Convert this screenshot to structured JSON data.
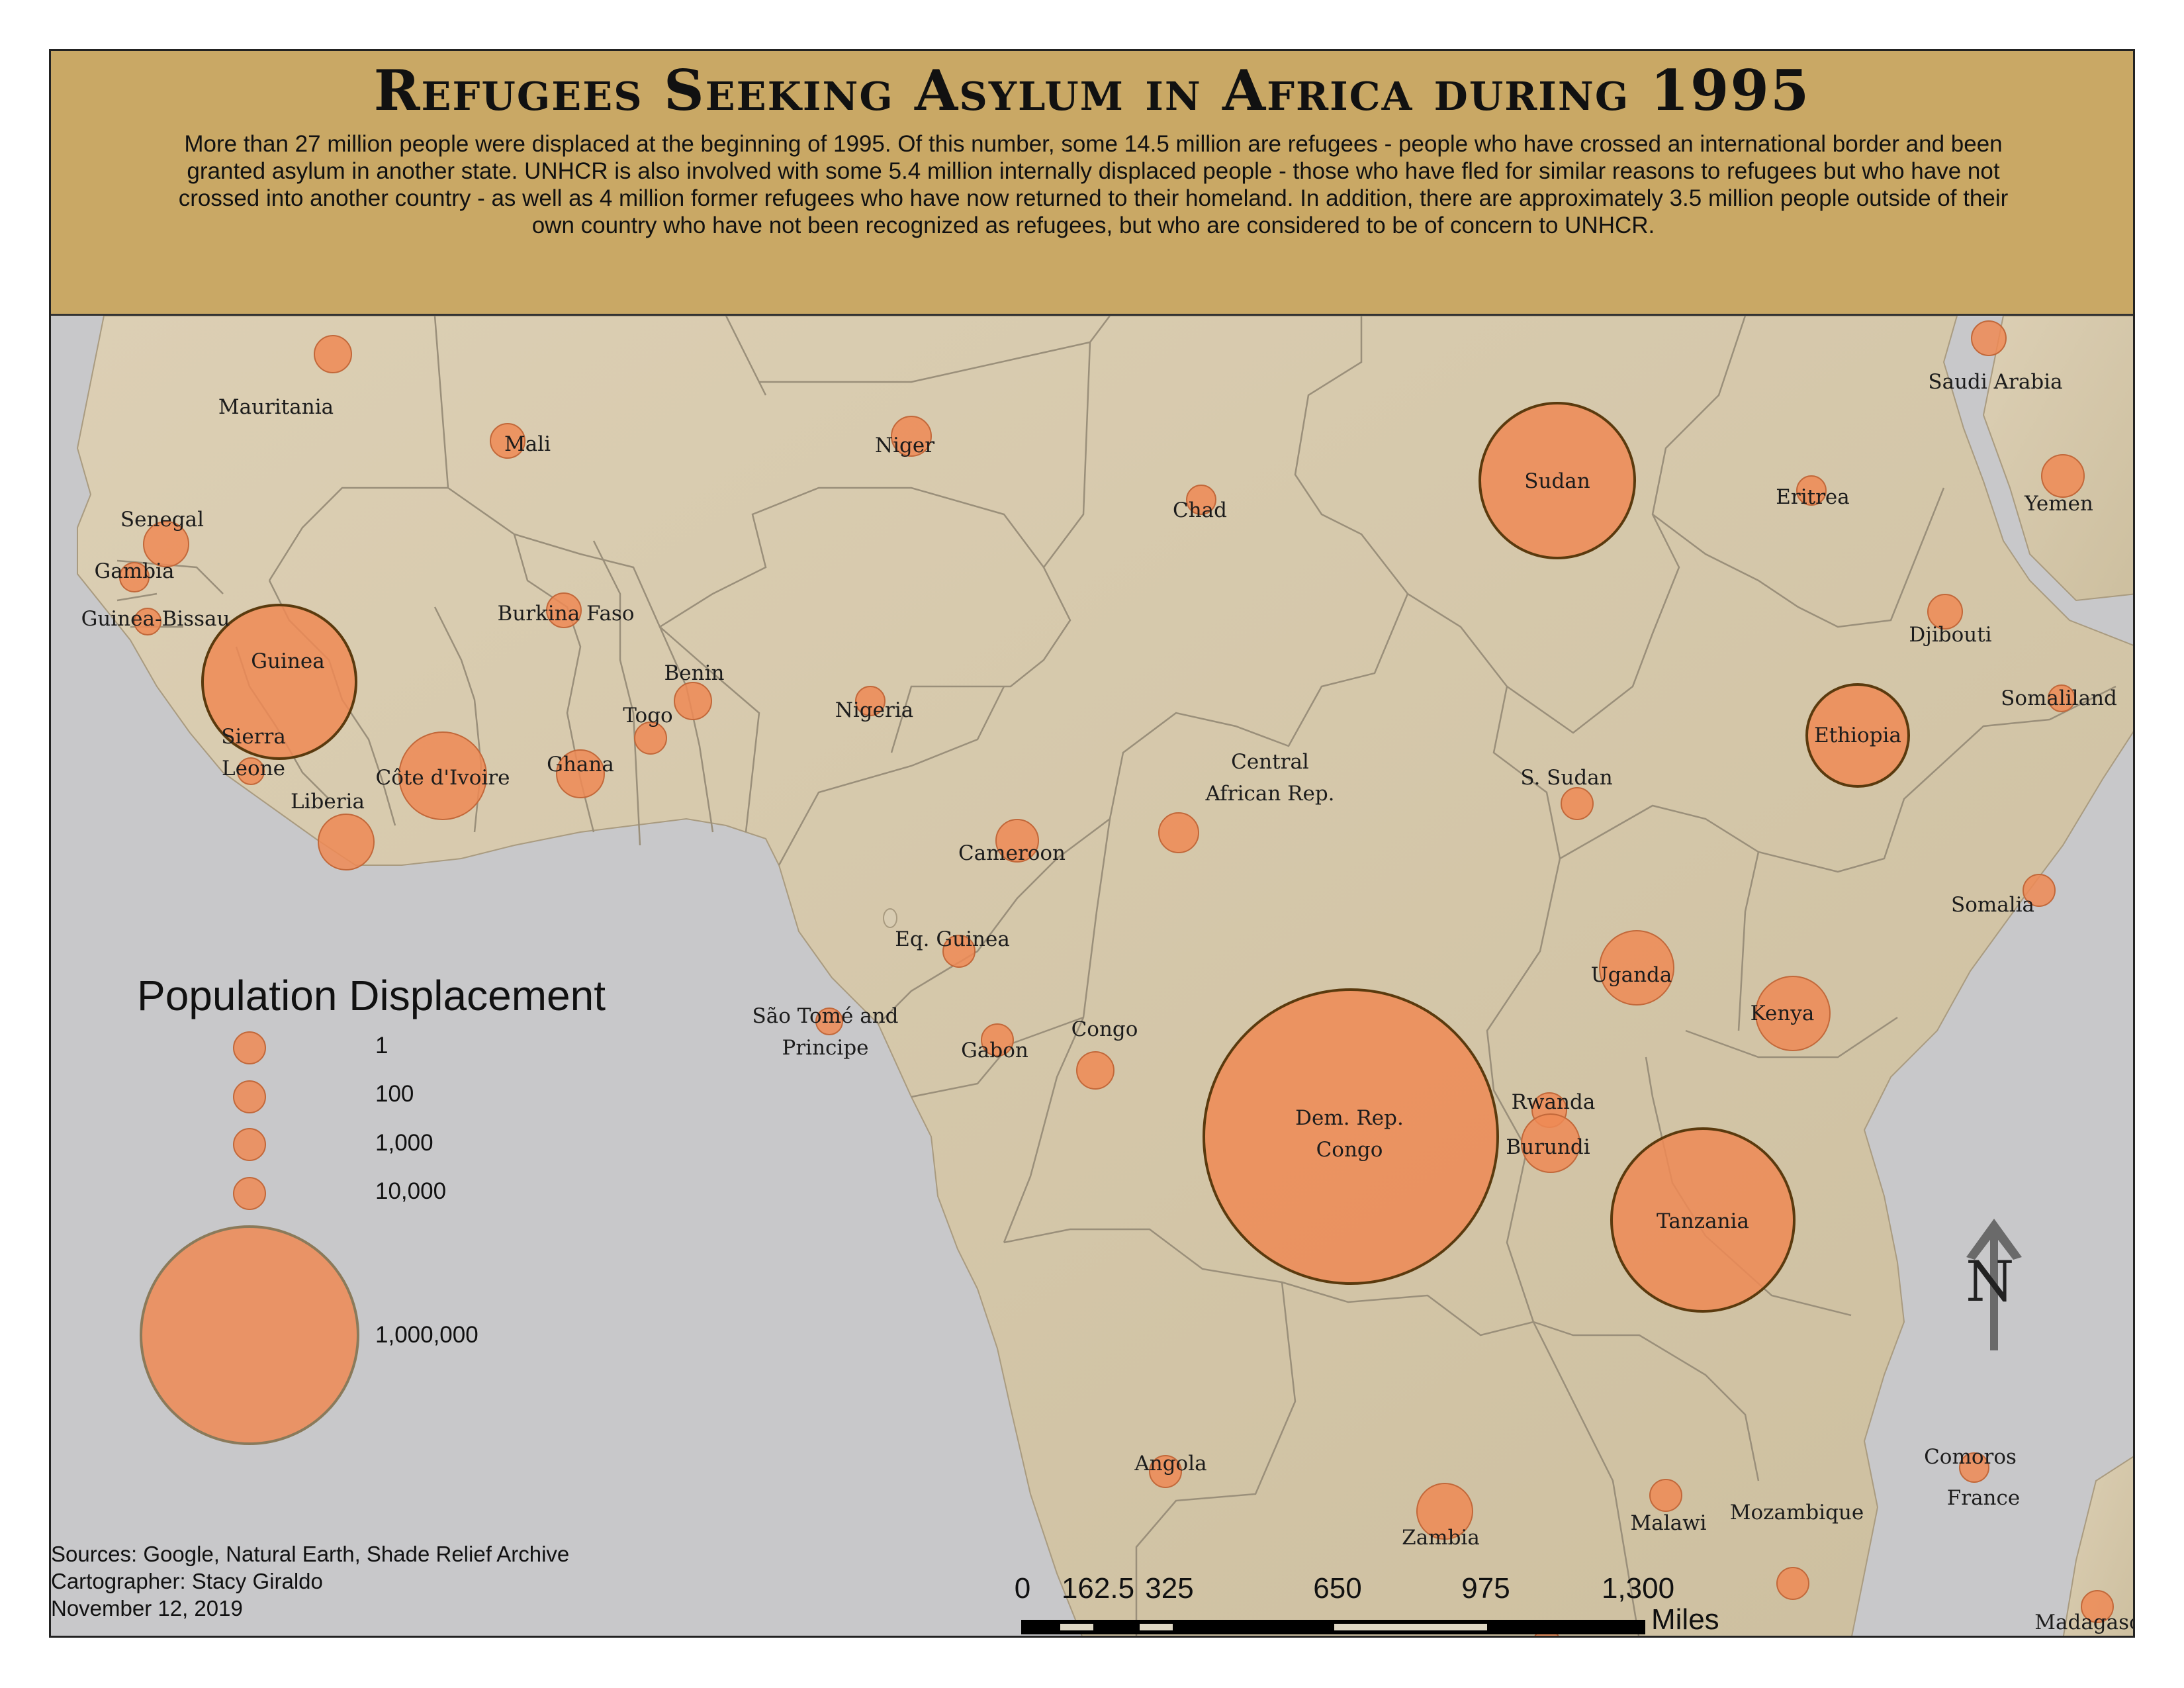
{
  "title": "Refugees Seeking Asylum in Africa during 1995",
  "description": "More than 27 million people were displaced at the beginning of 1995. Of this number, some 14.5 million are refugees - people who have crossed an international border and been granted asylum in another state. UNHCR is also involved with some 5.4 million internally displaced people - those who have fled for similar reasons to refugees but who have not crossed into another country - as well as 4 million former refugees who have now returned to their homeland. In addition, there are approximately 3.5 million people outside of their own country who have not been recognized as refugees, but who are considered to be of concern to UNHCR.",
  "countries": [
    {
      "name": "Mauritania",
      "line1": "Mauritania",
      "line2": ""
    },
    {
      "name": "Mali",
      "line1": "Mali",
      "line2": ""
    },
    {
      "name": "Niger",
      "line1": "Niger",
      "line2": ""
    },
    {
      "name": "Chad",
      "line1": "Chad",
      "line2": ""
    },
    {
      "name": "Sudan",
      "line1": "Sudan",
      "line2": ""
    },
    {
      "name": "Eritrea",
      "line1": "Eritrea",
      "line2": ""
    },
    {
      "name": "Saudi Arabia",
      "line1": "Saudi Arabia",
      "line2": ""
    },
    {
      "name": "Yemen",
      "line1": "Yemen",
      "line2": ""
    },
    {
      "name": "Senegal",
      "line1": "Senegal",
      "line2": ""
    },
    {
      "name": "Gambia",
      "line1": "Gambia",
      "line2": ""
    },
    {
      "name": "Guinea-Bissau",
      "line1": "Guinea-Bissau",
      "line2": ""
    },
    {
      "name": "Guinea",
      "line1": "Guinea",
      "line2": ""
    },
    {
      "name": "Burkina Faso",
      "line1": "Burkina Faso",
      "line2": ""
    },
    {
      "name": "Benin",
      "line1": "Benin",
      "line2": ""
    },
    {
      "name": "Togo",
      "line1": "Togo",
      "line2": ""
    },
    {
      "name": "Nigeria",
      "line1": "Nigeria",
      "line2": ""
    },
    {
      "name": "Djibouti",
      "line1": "Djibouti",
      "line2": ""
    },
    {
      "name": "Somaliland",
      "line1": "Somaliland",
      "line2": ""
    },
    {
      "name": "Ethiopia",
      "line1": "Ethiopia",
      "line2": ""
    },
    {
      "name": "Sierra Leone",
      "line1": "Sierra",
      "line2": "Leone"
    },
    {
      "name": "Côte d'Ivoire",
      "line1": "Côte d'Ivoire",
      "line2": ""
    },
    {
      "name": "Ghana",
      "line1": "Ghana",
      "line2": ""
    },
    {
      "name": "Liberia",
      "line1": "Liberia",
      "line2": ""
    },
    {
      "name": "Central African Rep.",
      "line1": "Central",
      "line2": "African Rep."
    },
    {
      "name": "S. Sudan",
      "line1": "S. Sudan",
      "line2": ""
    },
    {
      "name": "Cameroon",
      "line1": "Cameroon",
      "line2": ""
    },
    {
      "name": "Somalia",
      "line1": "Somalia",
      "line2": ""
    },
    {
      "name": "Eq. Guinea",
      "line1": "Eq. Guinea",
      "line2": ""
    },
    {
      "name": "Uganda",
      "line1": "Uganda",
      "line2": ""
    },
    {
      "name": "Kenya",
      "line1": "Kenya",
      "line2": ""
    },
    {
      "name": "São Tomé and Principe",
      "line1": "São Tomé and",
      "line2": "Principe"
    },
    {
      "name": "Gabon",
      "line1": "Gabon",
      "line2": ""
    },
    {
      "name": "Congo",
      "line1": "Congo",
      "line2": ""
    },
    {
      "name": "Dem. Rep. Congo",
      "line1": "Dem. Rep.",
      "line2": "Congo"
    },
    {
      "name": "Rwanda",
      "line1": "Rwanda",
      "line2": ""
    },
    {
      "name": "Burundi",
      "line1": "Burundi",
      "line2": ""
    },
    {
      "name": "Tanzania",
      "line1": "Tanzania",
      "line2": ""
    },
    {
      "name": "Angola",
      "line1": "Angola",
      "line2": ""
    },
    {
      "name": "Zambia",
      "line1": "Zambia",
      "line2": ""
    },
    {
      "name": "Malawi",
      "line1": "Malawi",
      "line2": ""
    },
    {
      "name": "Mozambique",
      "line1": "Mozambique",
      "line2": ""
    },
    {
      "name": "Comoros",
      "line1": "Comoros",
      "line2": ""
    },
    {
      "name": "France",
      "line1": "France",
      "line2": ""
    },
    {
      "name": "Madagascar",
      "line1": "Madagascar",
      "line2": ""
    }
  ],
  "legend": {
    "title": "Population Displacement",
    "items": [
      "1",
      "100",
      "1,000",
      "10,000",
      "1,000,000"
    ]
  },
  "scale_bar": {
    "ticks": [
      "0",
      "162.5",
      "325",
      "650",
      "975",
      "1,300"
    ],
    "unit": "Miles"
  },
  "north_arrow": {
    "label": "N"
  },
  "colors": {
    "header": "#c9a865",
    "bubble": "#ee8a55",
    "land": "#d8ccb2",
    "water": "#c9c9cb"
  },
  "sources": {
    "line1": "Sources: Google, Natural Earth, Shade Relief Archive",
    "line2": "Cartographer: Stacy Giraldo",
    "line3": "November 12, 2019"
  }
}
